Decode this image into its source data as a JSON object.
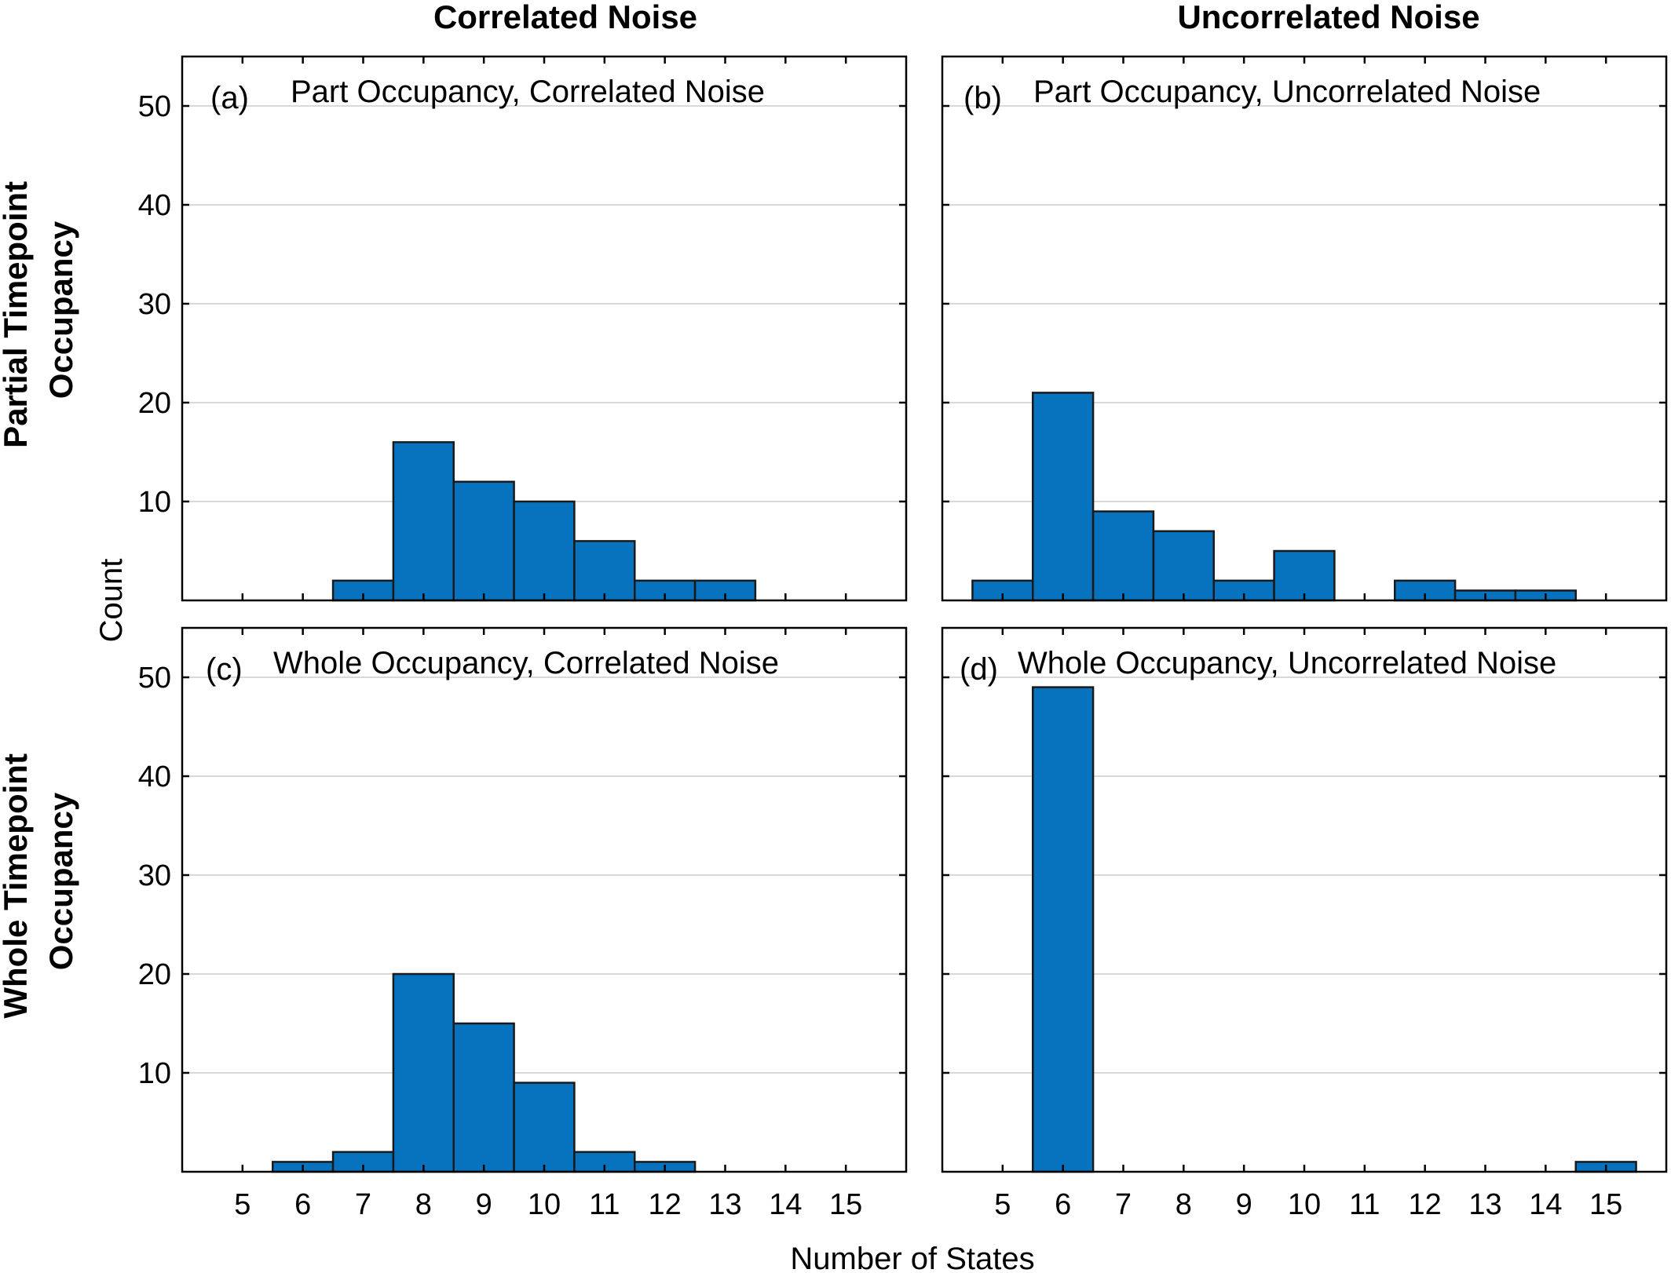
{
  "figure": {
    "col_titles": [
      "Correlated Noise",
      "Uncorrelated Noise"
    ],
    "row_titles": [
      [
        "Partial Timepoint",
        "Occupancy"
      ],
      [
        "Whole Timepoint",
        "Occupancy"
      ]
    ],
    "ylabel": "Count",
    "xlabel": "Number of States"
  },
  "colors": {
    "bar_fill": "#0772BD",
    "bar_edge": "#1a1a1a",
    "grid": "#d9d9d9",
    "axis": "#000000"
  },
  "chart_data": [
    {
      "type": "bar",
      "panel": "(a)",
      "title": "Part Occupancy, Correlated Noise",
      "xlabel": "",
      "ylabel": "Count",
      "xlim": [
        4,
        16
      ],
      "ylim": [
        0,
        55
      ],
      "xticks": [
        5,
        6,
        7,
        8,
        9,
        10,
        11,
        12,
        13,
        14,
        15
      ],
      "yticks": [
        10,
        20,
        30,
        40,
        50
      ],
      "grid": true,
      "categories": [
        5,
        6,
        7,
        8,
        9,
        10,
        11,
        12,
        13,
        14,
        15
      ],
      "values": [
        0,
        0,
        2,
        16,
        12,
        10,
        6,
        2,
        2,
        0,
        0
      ]
    },
    {
      "type": "bar",
      "panel": "(b)",
      "title": "Part Occupancy, Uncorrelated Noise",
      "xlabel": "",
      "ylabel": "",
      "xlim": [
        4,
        16
      ],
      "ylim": [
        0,
        55
      ],
      "xticks": [
        5,
        6,
        7,
        8,
        9,
        10,
        11,
        12,
        13,
        14,
        15
      ],
      "yticks": [
        10,
        20,
        30,
        40,
        50
      ],
      "grid": true,
      "categories": [
        5,
        6,
        7,
        8,
        9,
        10,
        11,
        12,
        13,
        14,
        15
      ],
      "values": [
        2,
        21,
        9,
        7,
        2,
        5,
        0,
        2,
        1,
        1,
        0
      ]
    },
    {
      "type": "bar",
      "panel": "(c)",
      "title": "Whole Occupancy, Correlated Noise",
      "xlabel": "Number of States",
      "ylabel": "Count",
      "xlim": [
        4,
        16
      ],
      "ylim": [
        0,
        55
      ],
      "xticks": [
        5,
        6,
        7,
        8,
        9,
        10,
        11,
        12,
        13,
        14,
        15
      ],
      "yticks": [
        10,
        20,
        30,
        40,
        50
      ],
      "grid": true,
      "categories": [
        5,
        6,
        7,
        8,
        9,
        10,
        11,
        12,
        13,
        14,
        15
      ],
      "values": [
        0,
        1,
        2,
        20,
        15,
        9,
        2,
        1,
        0,
        0,
        0
      ]
    },
    {
      "type": "bar",
      "panel": "(d)",
      "title": "Whole Occupancy, Uncorrelated Noise",
      "xlabel": "Number of States",
      "ylabel": "",
      "xlim": [
        4,
        16
      ],
      "ylim": [
        0,
        55
      ],
      "xticks": [
        5,
        6,
        7,
        8,
        9,
        10,
        11,
        12,
        13,
        14,
        15
      ],
      "yticks": [
        10,
        20,
        30,
        40,
        50
      ],
      "grid": true,
      "categories": [
        5,
        6,
        7,
        8,
        9,
        10,
        11,
        12,
        13,
        14,
        15
      ],
      "values": [
        0,
        49,
        0,
        0,
        0,
        0,
        0,
        0,
        0,
        0,
        1
      ]
    }
  ]
}
